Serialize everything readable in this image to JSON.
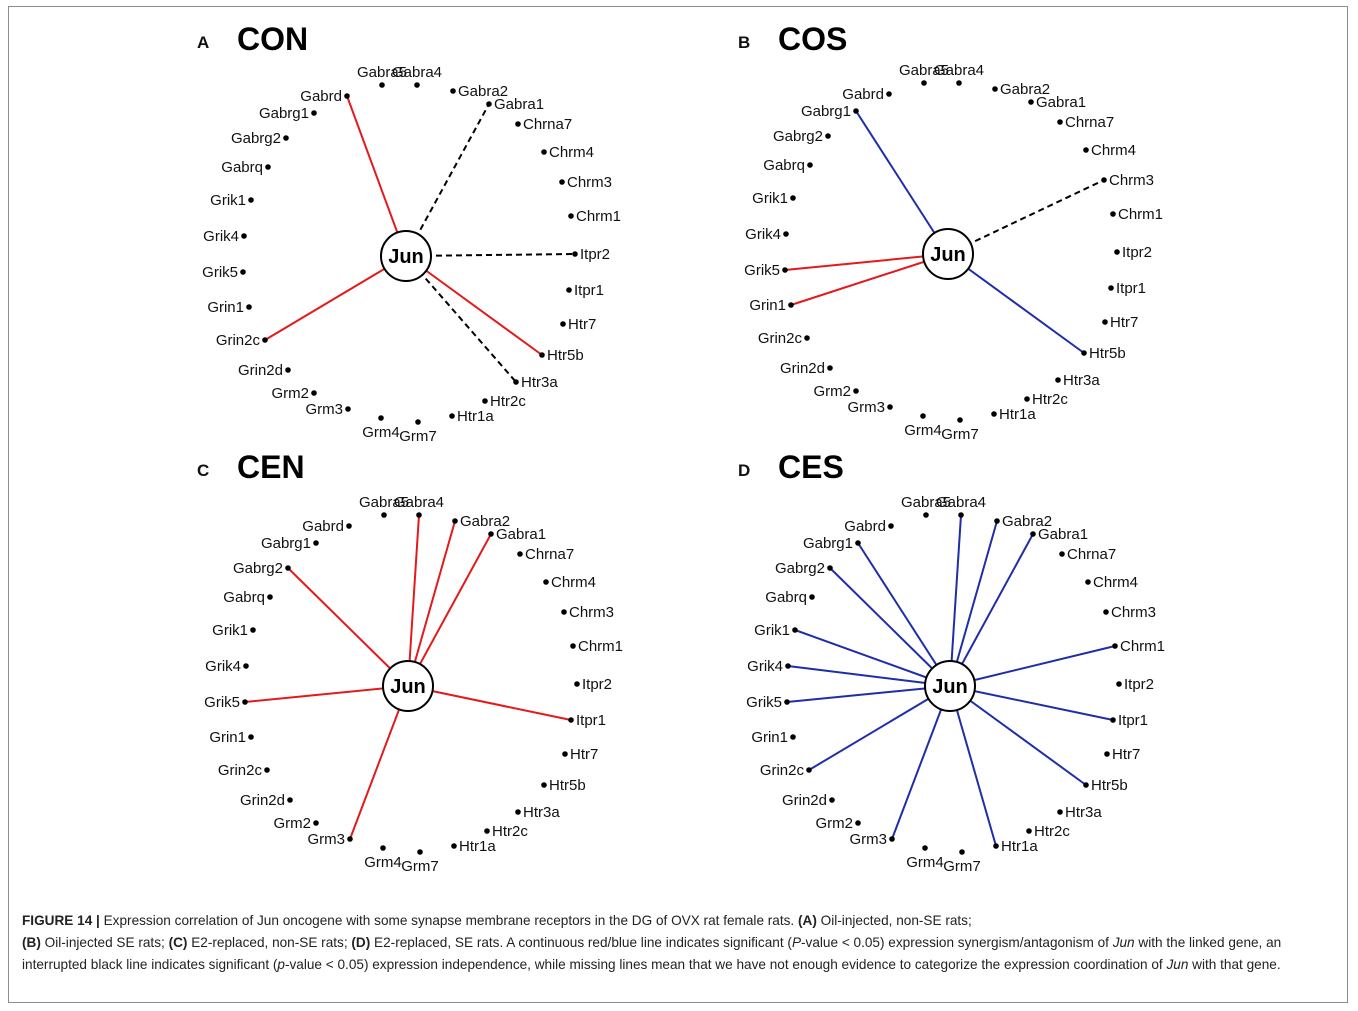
{
  "colors": {
    "synergism": "#e31a1c",
    "antagonism": "#1f2ea8",
    "independence": "#000000"
  },
  "hub": "Jun",
  "panels": [
    {
      "letter": "A",
      "title": "CON",
      "genes": [
        {
          "name": "Gabra5",
          "side": "top"
        },
        {
          "name": "Gabra4",
          "side": "top"
        },
        {
          "name": "Gabra2",
          "side": "right"
        },
        {
          "name": "Gabra1",
          "side": "right"
        },
        {
          "name": "Chrna7",
          "side": "right"
        },
        {
          "name": "Chrm4",
          "side": "right"
        },
        {
          "name": "Chrm3",
          "side": "right"
        },
        {
          "name": "Chrm1",
          "side": "right"
        },
        {
          "name": "Itpr2",
          "side": "right"
        },
        {
          "name": "Itpr1",
          "side": "right"
        },
        {
          "name": "Htr7",
          "side": "right"
        },
        {
          "name": "Htr5b",
          "side": "right"
        },
        {
          "name": "Htr3a",
          "side": "right"
        },
        {
          "name": "Htr2c",
          "side": "right"
        },
        {
          "name": "Htr1a",
          "side": "right"
        },
        {
          "name": "Grm7",
          "side": "bottom"
        },
        {
          "name": "Grm4",
          "side": "bottom"
        },
        {
          "name": "Grm3",
          "side": "left"
        },
        {
          "name": "Grm2",
          "side": "left"
        },
        {
          "name": "Grin2d",
          "side": "left"
        },
        {
          "name": "Grin2c",
          "side": "left"
        },
        {
          "name": "Grin1",
          "side": "left"
        },
        {
          "name": "Grik5",
          "side": "left"
        },
        {
          "name": "Grik4",
          "side": "left"
        },
        {
          "name": "Grik1",
          "side": "left"
        },
        {
          "name": "Gabrq",
          "side": "left"
        },
        {
          "name": "Gabrg2",
          "side": "left"
        },
        {
          "name": "Gabrg1",
          "side": "left"
        },
        {
          "name": "Gabrd",
          "side": "left"
        }
      ],
      "links": [
        {
          "gene": "Gabrd",
          "type": "synergism"
        },
        {
          "gene": "Grin2c",
          "type": "synergism"
        },
        {
          "gene": "Htr5b",
          "type": "synergism"
        },
        {
          "gene": "Gabra1",
          "type": "independence"
        },
        {
          "gene": "Itpr2",
          "type": "independence"
        },
        {
          "gene": "Htr3a",
          "type": "independence"
        }
      ]
    },
    {
      "letter": "B",
      "title": "COS",
      "genes": [
        {
          "name": "Gabra5",
          "side": "top"
        },
        {
          "name": "Gabra4",
          "side": "top"
        },
        {
          "name": "Gabra2",
          "side": "right"
        },
        {
          "name": "Gabra1",
          "side": "right"
        },
        {
          "name": "Chrna7",
          "side": "right"
        },
        {
          "name": "Chrm4",
          "side": "right"
        },
        {
          "name": "Chrm3",
          "side": "right"
        },
        {
          "name": "Chrm1",
          "side": "right"
        },
        {
          "name": "Itpr2",
          "side": "right"
        },
        {
          "name": "Itpr1",
          "side": "right"
        },
        {
          "name": "Htr7",
          "side": "right"
        },
        {
          "name": "Htr5b",
          "side": "right"
        },
        {
          "name": "Htr3a",
          "side": "right"
        },
        {
          "name": "Htr2c",
          "side": "right"
        },
        {
          "name": "Htr1a",
          "side": "right"
        },
        {
          "name": "Grm7",
          "side": "bottom"
        },
        {
          "name": "Grm4",
          "side": "bottom"
        },
        {
          "name": "Grm3",
          "side": "left"
        },
        {
          "name": "Grm2",
          "side": "left"
        },
        {
          "name": "Grin2d",
          "side": "left"
        },
        {
          "name": "Grin2c",
          "side": "left"
        },
        {
          "name": "Grin1",
          "side": "left"
        },
        {
          "name": "Grik5",
          "side": "left"
        },
        {
          "name": "Grik4",
          "side": "left"
        },
        {
          "name": "Grik1",
          "side": "left"
        },
        {
          "name": "Gabrq",
          "side": "left"
        },
        {
          "name": "Gabrg2",
          "side": "left"
        },
        {
          "name": "Gabrg1",
          "side": "left"
        },
        {
          "name": "Gabrd",
          "side": "left"
        }
      ],
      "links": [
        {
          "gene": "Gabrg1",
          "type": "antagonism"
        },
        {
          "gene": "Htr5b",
          "type": "antagonism"
        },
        {
          "gene": "Grik5",
          "type": "synergism"
        },
        {
          "gene": "Grin1",
          "type": "synergism"
        },
        {
          "gene": "Chrm3",
          "type": "independence"
        }
      ]
    },
    {
      "letter": "C",
      "title": "CEN",
      "genes": [
        {
          "name": "Gabra5",
          "side": "top"
        },
        {
          "name": "Gabra4",
          "side": "top"
        },
        {
          "name": "Gabra2",
          "side": "right"
        },
        {
          "name": "Gabra1",
          "side": "right"
        },
        {
          "name": "Chrna7",
          "side": "right"
        },
        {
          "name": "Chrm4",
          "side": "right"
        },
        {
          "name": "Chrm3",
          "side": "right"
        },
        {
          "name": "Chrm1",
          "side": "right"
        },
        {
          "name": "Itpr2",
          "side": "right"
        },
        {
          "name": "Itpr1",
          "side": "right"
        },
        {
          "name": "Htr7",
          "side": "right"
        },
        {
          "name": "Htr5b",
          "side": "right"
        },
        {
          "name": "Htr3a",
          "side": "right"
        },
        {
          "name": "Htr2c",
          "side": "right"
        },
        {
          "name": "Htr1a",
          "side": "right"
        },
        {
          "name": "Grm7",
          "side": "bottom"
        },
        {
          "name": "Grm4",
          "side": "bottom"
        },
        {
          "name": "Grm3",
          "side": "left"
        },
        {
          "name": "Grm2",
          "side": "left"
        },
        {
          "name": "Grin2d",
          "side": "left"
        },
        {
          "name": "Grin2c",
          "side": "left"
        },
        {
          "name": "Grin1",
          "side": "left"
        },
        {
          "name": "Grik5",
          "side": "left"
        },
        {
          "name": "Grik4",
          "side": "left"
        },
        {
          "name": "Grik1",
          "side": "left"
        },
        {
          "name": "Gabrq",
          "side": "left"
        },
        {
          "name": "Gabrg2",
          "side": "left"
        },
        {
          "name": "Gabrg1",
          "side": "left"
        },
        {
          "name": "Gabrd",
          "side": "left"
        }
      ],
      "links": [
        {
          "gene": "Gabra4",
          "type": "synergism"
        },
        {
          "gene": "Gabra2",
          "type": "synergism"
        },
        {
          "gene": "Gabra1",
          "type": "synergism"
        },
        {
          "gene": "Gabrg2",
          "type": "synergism"
        },
        {
          "gene": "Grik5",
          "type": "synergism"
        },
        {
          "gene": "Itpr1",
          "type": "synergism"
        },
        {
          "gene": "Grm3",
          "type": "synergism"
        }
      ]
    },
    {
      "letter": "D",
      "title": "CES",
      "genes": [
        {
          "name": "Gabra5",
          "side": "top"
        },
        {
          "name": "Gabra4",
          "side": "top"
        },
        {
          "name": "Gabra2",
          "side": "right"
        },
        {
          "name": "Gabra1",
          "side": "right"
        },
        {
          "name": "Chrna7",
          "side": "right"
        },
        {
          "name": "Chrm4",
          "side": "right"
        },
        {
          "name": "Chrm3",
          "side": "right"
        },
        {
          "name": "Chrm1",
          "side": "right"
        },
        {
          "name": "Itpr2",
          "side": "right"
        },
        {
          "name": "Itpr1",
          "side": "right"
        },
        {
          "name": "Htr7",
          "side": "right"
        },
        {
          "name": "Htr5b",
          "side": "right"
        },
        {
          "name": "Htr3a",
          "side": "right"
        },
        {
          "name": "Htr2c",
          "side": "right"
        },
        {
          "name": "Htr1a",
          "side": "right"
        },
        {
          "name": "Grm7",
          "side": "bottom"
        },
        {
          "name": "Grm4",
          "side": "bottom"
        },
        {
          "name": "Grm3",
          "side": "left"
        },
        {
          "name": "Grm2",
          "side": "left"
        },
        {
          "name": "Grin2d",
          "side": "left"
        },
        {
          "name": "Grin2c",
          "side": "left"
        },
        {
          "name": "Grin1",
          "side": "left"
        },
        {
          "name": "Grik5",
          "side": "left"
        },
        {
          "name": "Grik4",
          "side": "left"
        },
        {
          "name": "Grik1",
          "side": "left"
        },
        {
          "name": "Gabrq",
          "side": "left"
        },
        {
          "name": "Gabrg2",
          "side": "left"
        },
        {
          "name": "Gabrg1",
          "side": "left"
        },
        {
          "name": "Gabrd",
          "side": "left"
        }
      ],
      "links": [
        {
          "gene": "Gabra4",
          "type": "antagonism"
        },
        {
          "gene": "Gabra2",
          "type": "antagonism"
        },
        {
          "gene": "Gabra1",
          "type": "antagonism"
        },
        {
          "gene": "Gabrg1",
          "type": "antagonism"
        },
        {
          "gene": "Gabrg2",
          "type": "antagonism"
        },
        {
          "gene": "Grik1",
          "type": "antagonism"
        },
        {
          "gene": "Grik4",
          "type": "antagonism"
        },
        {
          "gene": "Grik5",
          "type": "antagonism"
        },
        {
          "gene": "Grin2c",
          "type": "antagonism"
        },
        {
          "gene": "Grm3",
          "type": "antagonism"
        },
        {
          "gene": "Htr1a",
          "type": "antagonism"
        },
        {
          "gene": "Htr5b",
          "type": "antagonism"
        },
        {
          "gene": "Itpr1",
          "type": "antagonism"
        },
        {
          "gene": "Chrm1",
          "type": "antagonism"
        }
      ]
    }
  ],
  "caption": {
    "figure_label": "FIGURE 14 |",
    "part1": " Expression correlation of Jun oncogene with some synapse membrane receptors in the DG of OVX rat female rats. ",
    "a_label": "(A)",
    "a_text": " Oil-injected, non-SE rats;",
    "b_label": "(B)",
    "b_text": " Oil-injected SE rats; ",
    "c_label": "(C)",
    "c_text": " E2-replaced, non-SE rats; ",
    "d_label": "(D)",
    "d_text": " E2-replaced, SE rats. A continuous red/blue line indicates significant (",
    "p_upper": "P",
    "t1": "-value < 0.05) expression synergism/antagonism of ",
    "jun1": "Jun",
    "t2": " with the linked gene, an interrupted black line indicates significant (",
    "p_lower": "p",
    "t3": "-value < 0.05) expression independence, while missing lines mean that we have not enough evidence to categorize the expression coordination of ",
    "jun2": "Jun",
    "t4": " with that gene."
  }
}
